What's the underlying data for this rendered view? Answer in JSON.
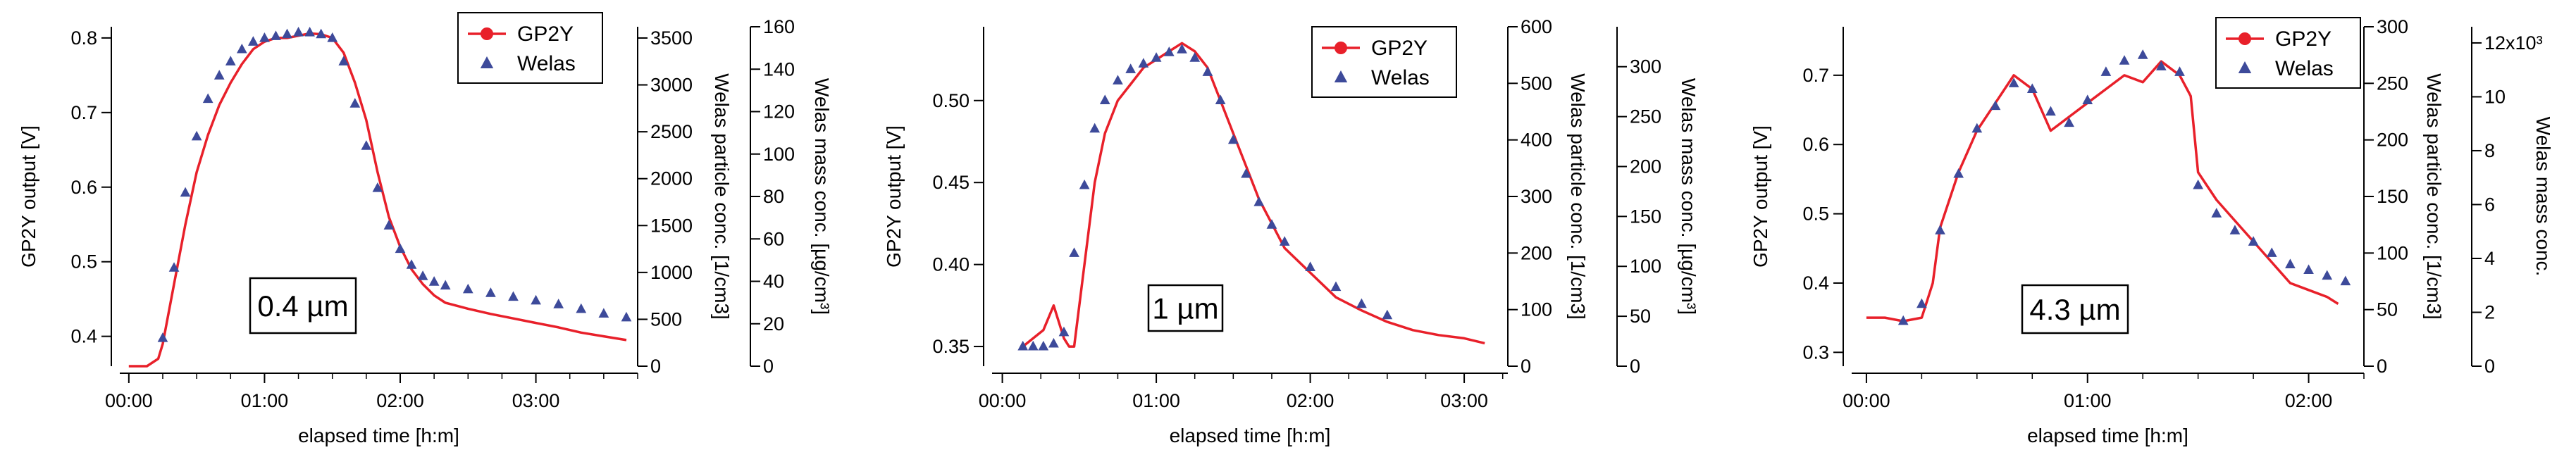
{
  "colors": {
    "gp2y": "#e8202a",
    "welas": "#3d4a9a",
    "axis": "#000000"
  },
  "chart_data": [
    {
      "type": "scatter",
      "panel": "left",
      "annotation": "0.4 µm",
      "xlabel": "elapsed time [h:m]",
      "xlim": [
        -4,
        225
      ],
      "xticks": [
        0,
        60,
        120,
        180
      ],
      "xticklabels": [
        "00:00",
        "01:00",
        "02:00",
        "03:00"
      ],
      "ylabel_left": "GP2Y output [V]",
      "ylim_left": [
        0.36,
        0.815
      ],
      "yticks_left": [
        0.4,
        0.5,
        0.6,
        0.7,
        0.8
      ],
      "yticklabels_left": [
        "0.4",
        "0.5",
        "0.6",
        "0.7",
        "0.8"
      ],
      "ylabel_right1": "Welas particle conc. [1/cm3]",
      "ylim_right1": [
        0,
        3620
      ],
      "yticks_right1": [
        0,
        500,
        1000,
        1500,
        2000,
        2500,
        3000,
        3500
      ],
      "yticklabels_right1": [
        "0",
        "500",
        "1000",
        "1500",
        "2000",
        "2500",
        "3000",
        "3500"
      ],
      "ylabel_right2": "Welas mass conc. [µg/cm³]",
      "ylim_right2": [
        0,
        160
      ],
      "yticks_right2": [
        0,
        20,
        40,
        60,
        80,
        100,
        120,
        140,
        160
      ],
      "yticklabels_right2": [
        "0",
        "20",
        "40",
        "60",
        "80",
        "100",
        "120",
        "140",
        "160"
      ],
      "legend": [
        "GP2Y",
        "Welas"
      ],
      "series": [
        {
          "name": "GP2Y",
          "style": "line",
          "axis": "left",
          "x": [
            0,
            8,
            13,
            15,
            20,
            25,
            30,
            35,
            40,
            45,
            50,
            55,
            60,
            65,
            70,
            75,
            80,
            85,
            90,
            95,
            100,
            105,
            110,
            115,
            120,
            125,
            130,
            135,
            140,
            150,
            160,
            170,
            180,
            190,
            200,
            210,
            220
          ],
          "y": [
            0.36,
            0.36,
            0.37,
            0.39,
            0.47,
            0.55,
            0.62,
            0.67,
            0.71,
            0.74,
            0.765,
            0.785,
            0.795,
            0.8,
            0.8,
            0.803,
            0.806,
            0.805,
            0.8,
            0.78,
            0.74,
            0.69,
            0.62,
            0.56,
            0.52,
            0.49,
            0.47,
            0.455,
            0.445,
            0.437,
            0.43,
            0.424,
            0.418,
            0.412,
            0.405,
            0.4,
            0.395
          ]
        },
        {
          "name": "Welas",
          "style": "markers",
          "axis": "right1",
          "x": [
            15,
            20,
            25,
            30,
            35,
            40,
            45,
            50,
            55,
            60,
            65,
            70,
            75,
            80,
            85,
            90,
            95,
            100,
            105,
            110,
            115,
            120,
            125,
            130,
            135,
            140,
            150,
            160,
            170,
            180,
            190,
            200,
            210,
            220
          ],
          "y": [
            300,
            1050,
            1850,
            2450,
            2850,
            3100,
            3250,
            3380,
            3460,
            3500,
            3520,
            3540,
            3560,
            3560,
            3540,
            3500,
            3250,
            2800,
            2350,
            1900,
            1500,
            1250,
            1080,
            960,
            900,
            860,
            820,
            780,
            740,
            700,
            660,
            610,
            560,
            520
          ]
        }
      ]
    },
    {
      "type": "scatter",
      "panel": "middle",
      "annotation": "1 µm",
      "xlabel": "elapsed time [h:m]",
      "xlim": [
        -4,
        197
      ],
      "xticks": [
        0,
        60,
        120,
        180
      ],
      "xticklabels": [
        "00:00",
        "01:00",
        "02:00",
        "03:00"
      ],
      "ylabel_left": "GP2Y output [V]",
      "ylim_left": [
        0.338,
        0.545
      ],
      "yticks_left": [
        0.35,
        0.4,
        0.45,
        0.5
      ],
      "yticklabels_left": [
        "0.35",
        "0.40",
        "0.45",
        "0.50"
      ],
      "ylabel_right1": "Welas particle conc. [1/cm3]",
      "ylim_right1": [
        0,
        600
      ],
      "yticks_right1": [
        0,
        100,
        200,
        300,
        400,
        500,
        600
      ],
      "yticklabels_right1": [
        "0",
        "100",
        "200",
        "300",
        "400",
        "500",
        "600"
      ],
      "ylabel_right2": "Welas mass conc. [µg/cm³]",
      "ylim_right2": [
        0,
        340
      ],
      "yticks_right2": [
        0,
        50,
        100,
        150,
        200,
        250,
        300
      ],
      "yticklabels_right2": [
        "0",
        "50",
        "100",
        "150",
        "200",
        "250",
        "300"
      ],
      "legend": [
        "GP2Y",
        "Welas"
      ],
      "series": [
        {
          "name": "GP2Y",
          "style": "line",
          "axis": "left",
          "x": [
            8,
            12,
            16,
            20,
            24,
            26,
            28,
            32,
            36,
            40,
            45,
            50,
            55,
            60,
            65,
            70,
            75,
            80,
            85,
            90,
            95,
            100,
            105,
            110,
            120,
            130,
            140,
            150,
            160,
            170,
            180,
            188
          ],
          "y": [
            0.35,
            0.355,
            0.36,
            0.375,
            0.355,
            0.35,
            0.35,
            0.4,
            0.45,
            0.48,
            0.5,
            0.51,
            0.52,
            0.525,
            0.53,
            0.535,
            0.53,
            0.52,
            0.5,
            0.48,
            0.46,
            0.44,
            0.425,
            0.41,
            0.395,
            0.38,
            0.372,
            0.365,
            0.36,
            0.357,
            0.355,
            0.352
          ]
        },
        {
          "name": "Welas",
          "style": "markers",
          "axis": "right1",
          "x": [
            8,
            12,
            16,
            20,
            24,
            28,
            32,
            36,
            40,
            45,
            50,
            55,
            60,
            65,
            70,
            75,
            80,
            85,
            90,
            95,
            100,
            105,
            110,
            120,
            130,
            140,
            150
          ],
          "y": [
            35,
            35,
            35,
            40,
            60,
            200,
            320,
            420,
            470,
            505,
            525,
            535,
            545,
            555,
            560,
            545,
            520,
            470,
            400,
            340,
            290,
            250,
            220,
            175,
            140,
            110,
            90
          ]
        }
      ]
    },
    {
      "type": "scatter",
      "panel": "right",
      "annotation": "4.3 µm",
      "xlabel": "elapsed time [h:m]",
      "xlim": [
        -4,
        135
      ],
      "xticks": [
        0,
        60,
        120
      ],
      "xticklabels": [
        "00:00",
        "01:00",
        "02:00"
      ],
      "ylabel_left": "GP2Y output [V]",
      "ylim_left": [
        0.28,
        0.77
      ],
      "yticks_left": [
        0.3,
        0.4,
        0.5,
        0.6,
        0.7
      ],
      "yticklabels_left": [
        "0.3",
        "0.4",
        "0.5",
        "0.6",
        "0.7"
      ],
      "ylabel_right1": "Welas particle conc. [1/cm3]",
      "ylim_right1": [
        0,
        300
      ],
      "yticks_right1": [
        0,
        50,
        100,
        150,
        200,
        250,
        300
      ],
      "yticklabels_right1": [
        "0",
        "50",
        "100",
        "150",
        "200",
        "250",
        "300"
      ],
      "ylabel_right2": "Welas mass conc.",
      "ylim_right2": [
        0,
        12.6
      ],
      "yticks_right2": [
        0,
        2,
        4,
        6,
        8,
        10,
        12
      ],
      "yticklabels_right2": [
        "0",
        "2",
        "4",
        "6",
        "8",
        "10",
        "12x10³"
      ],
      "legend": [
        "GP2Y",
        "Welas"
      ],
      "series": [
        {
          "name": "GP2Y",
          "style": "line",
          "axis": "left",
          "x": [
            0,
            5,
            10,
            15,
            18,
            20,
            25,
            30,
            35,
            40,
            45,
            50,
            55,
            60,
            65,
            70,
            75,
            80,
            85,
            88,
            90,
            95,
            100,
            105,
            110,
            115,
            120,
            125,
            128
          ],
          "y": [
            0.35,
            0.35,
            0.345,
            0.35,
            0.4,
            0.48,
            0.56,
            0.62,
            0.66,
            0.7,
            0.68,
            0.62,
            0.64,
            0.66,
            0.68,
            0.7,
            0.69,
            0.72,
            0.7,
            0.67,
            0.56,
            0.52,
            0.49,
            0.46,
            0.43,
            0.4,
            0.39,
            0.38,
            0.37
          ]
        },
        {
          "name": "Welas",
          "style": "markers",
          "axis": "right1",
          "x": [
            10,
            15,
            20,
            25,
            30,
            35,
            40,
            45,
            50,
            55,
            60,
            65,
            70,
            75,
            80,
            85,
            90,
            95,
            100,
            105,
            110,
            115,
            120,
            125,
            130
          ],
          "y": [
            40,
            55,
            120,
            170,
            210,
            230,
            250,
            245,
            225,
            215,
            235,
            260,
            270,
            275,
            265,
            260,
            160,
            135,
            120,
            110,
            100,
            90,
            85,
            80,
            75
          ]
        }
      ]
    }
  ]
}
